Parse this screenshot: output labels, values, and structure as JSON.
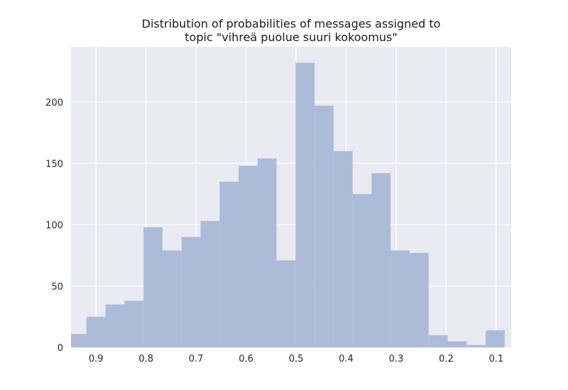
{
  "chart_data": {
    "type": "bar",
    "title_lines": [
      "Distribution of probabilities of messages assigned to",
      "topic \"vihreä puolue suuri kokoomus\""
    ],
    "xlabel": "",
    "ylabel": "",
    "x_axis_reversed": true,
    "xlim": [
      0.95,
      0.07
    ],
    "ylim": [
      0,
      245
    ],
    "x_ticks": [
      0.9,
      0.8,
      0.7,
      0.6,
      0.5,
      0.4,
      0.3,
      0.2,
      0.1
    ],
    "x_tick_labels": [
      "0.9",
      "0.8",
      "0.7",
      "0.6",
      "0.5",
      "0.4",
      "0.3",
      "0.2",
      "0.1"
    ],
    "y_ticks": [
      0,
      50,
      100,
      150,
      200
    ],
    "y_tick_labels": [
      "0",
      "50",
      "100",
      "150",
      "200"
    ],
    "grid": true,
    "bar_color": "#a9b8d6",
    "background_color": "#eaeaf2",
    "bin_edges": [
      0.957,
      0.919,
      0.881,
      0.843,
      0.805,
      0.767,
      0.729,
      0.691,
      0.653,
      0.615,
      0.577,
      0.539,
      0.501,
      0.463,
      0.425,
      0.387,
      0.349,
      0.311,
      0.273,
      0.235,
      0.197,
      0.159,
      0.121,
      0.083
    ],
    "counts": [
      11,
      25,
      35,
      38,
      98,
      79,
      90,
      103,
      135,
      148,
      154,
      71,
      232,
      197,
      160,
      125,
      142,
      79,
      77,
      10,
      5,
      2,
      14
    ]
  }
}
